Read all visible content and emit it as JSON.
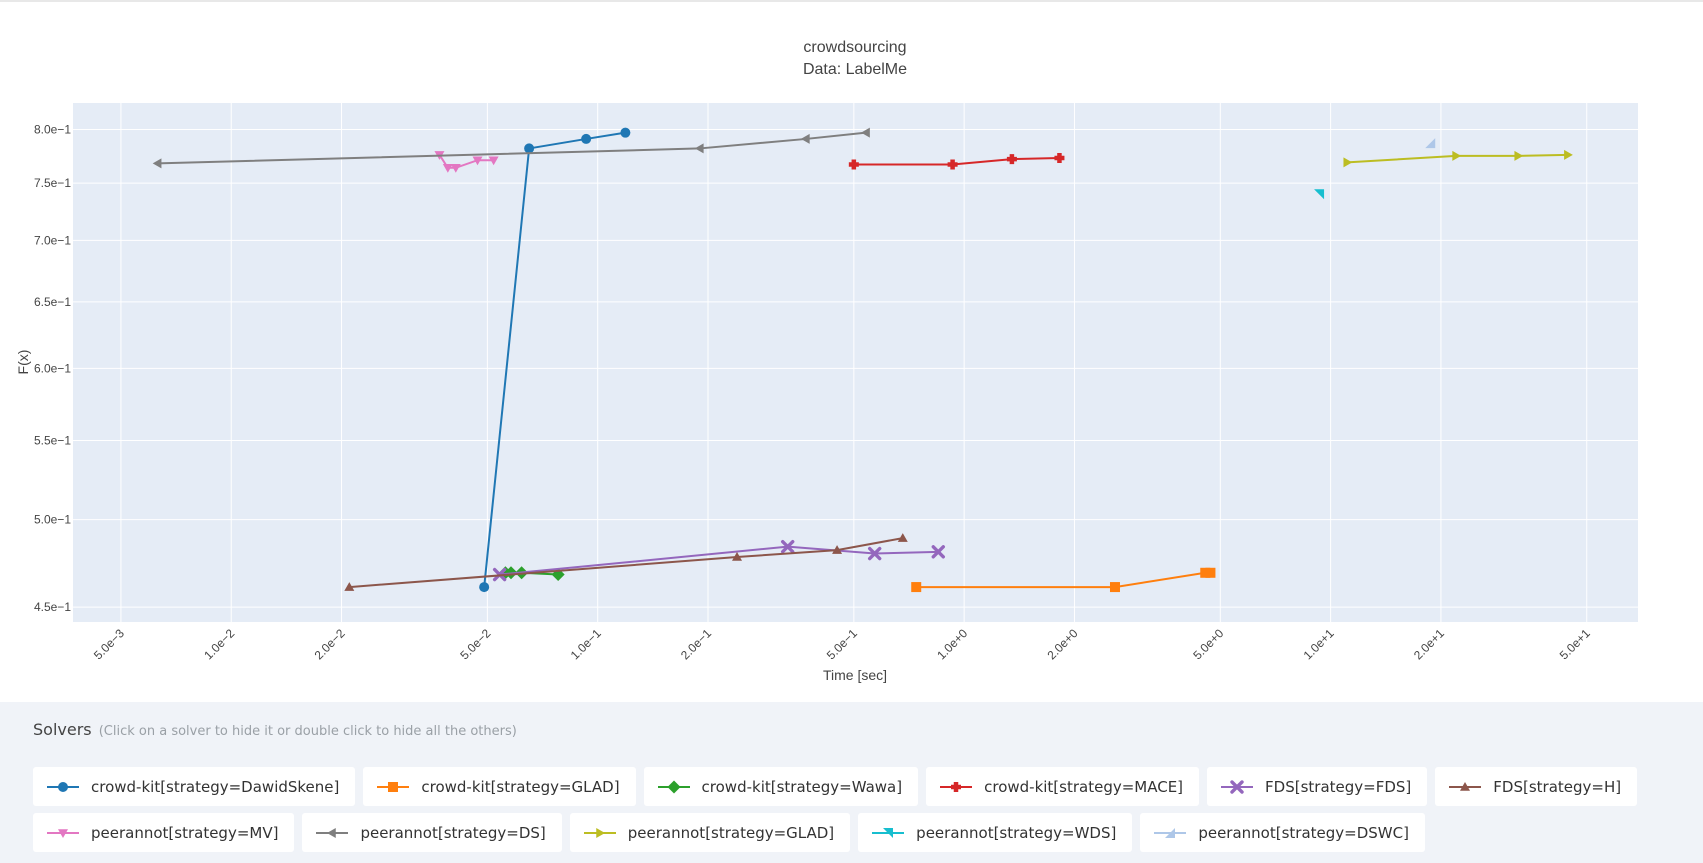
{
  "chart_data": {
    "type": "line",
    "title": "crowdsourcing",
    "subtitle": "Data: LabelMe",
    "xlabel": "Time [sec]",
    "ylabel": "F(x)",
    "x_scale": "log",
    "y_scale": "log",
    "xlim": [
      0.0037,
      69
    ],
    "ylim": [
      0.442,
      0.826
    ],
    "grid": true,
    "x_ticks": [
      {
        "value": 0.005,
        "label": "5.0e−3"
      },
      {
        "value": 0.01,
        "label": "1.0e−2"
      },
      {
        "value": 0.02,
        "label": "2.0e−2"
      },
      {
        "value": 0.05,
        "label": "5.0e−2"
      },
      {
        "value": 0.1,
        "label": "1.0e−1"
      },
      {
        "value": 0.2,
        "label": "2.0e−1"
      },
      {
        "value": 0.5,
        "label": "5.0e−1"
      },
      {
        "value": 1,
        "label": "1.0e+0"
      },
      {
        "value": 2,
        "label": "2.0e+0"
      },
      {
        "value": 5,
        "label": "5.0e+0"
      },
      {
        "value": 10,
        "label": "1.0e+1"
      },
      {
        "value": 20,
        "label": "2.0e+1"
      },
      {
        "value": 50,
        "label": "5.0e+1"
      }
    ],
    "y_ticks": [
      {
        "value": 0.45,
        "label": "4.5e−1"
      },
      {
        "value": 0.5,
        "label": "5.0e−1"
      },
      {
        "value": 0.55,
        "label": "5.5e−1"
      },
      {
        "value": 0.6,
        "label": "6.0e−1"
      },
      {
        "value": 0.65,
        "label": "6.5e−1"
      },
      {
        "value": 0.7,
        "label": "7.0e−1"
      },
      {
        "value": 0.75,
        "label": "7.5e−1"
      },
      {
        "value": 0.8,
        "label": "8.0e−1"
      }
    ],
    "series": [
      {
        "name": "crowd-kit[strategy=DawidSkene]",
        "color": "#1f77b4",
        "marker": "circle",
        "x": [
          0.049,
          0.065,
          0.093,
          0.119
        ],
        "y": [
          0.461,
          0.782,
          0.791,
          0.797
        ]
      },
      {
        "name": "crowd-kit[strategy=GLAD]",
        "color": "#ff7f0e",
        "marker": "square",
        "x": [
          0.74,
          2.58,
          4.55,
          4.7
        ],
        "y": [
          0.461,
          0.461,
          0.469,
          0.469
        ]
      },
      {
        "name": "crowd-kit[strategy=Wawa]",
        "color": "#2ca02c",
        "marker": "diamond",
        "x": [
          0.056,
          0.058,
          0.062,
          0.078
        ],
        "y": [
          0.469,
          0.469,
          0.469,
          0.468
        ]
      },
      {
        "name": "crowd-kit[strategy=MACE]",
        "color": "#d62728",
        "marker": "cross",
        "x": [
          0.5,
          0.93,
          1.35,
          1.82
        ],
        "y": [
          0.767,
          0.767,
          0.772,
          0.773
        ]
      },
      {
        "name": "FDS[strategy=FDS]",
        "color": "#9467bd",
        "marker": "x",
        "x": [
          0.054,
          0.33,
          0.57,
          0.85
        ],
        "y": [
          0.468,
          0.484,
          0.48,
          0.481
        ]
      },
      {
        "name": "FDS[strategy=H]",
        "color": "#8c564b",
        "marker": "triangle-up",
        "x": [
          0.021,
          0.24,
          0.45,
          0.68
        ],
        "y": [
          0.461,
          0.478,
          0.482,
          0.489
        ]
      },
      {
        "name": "peerannot[strategy=MV]",
        "color": "#e377c2",
        "marker": "triangle-down",
        "x": [
          0.037,
          0.039,
          0.041,
          0.047,
          0.052
        ],
        "y": [
          0.776,
          0.764,
          0.764,
          0.771,
          0.771
        ]
      },
      {
        "name": "peerannot[strategy=DS]",
        "color": "#7f7f7f",
        "marker": "triangle-left",
        "x": [
          0.0063,
          0.19,
          0.37,
          0.54
        ],
        "y": [
          0.768,
          0.782,
          0.791,
          0.797
        ]
      },
      {
        "name": "peerannot[strategy=GLAD]",
        "color": "#bcbd22",
        "marker": "triangle-right",
        "x": [
          11.1,
          22.0,
          32.5,
          44.4
        ],
        "y": [
          0.769,
          0.775,
          0.775,
          0.776
        ]
      },
      {
        "name": "peerannot[strategy=WDS]",
        "color": "#17becf",
        "marker": "triangle-ne",
        "x": [
          9.3
        ],
        "y": [
          0.74
        ]
      },
      {
        "name": "peerannot[strategy=DSWC]",
        "color": "#aec7e8",
        "marker": "triangle-sw",
        "x": [
          18.7
        ],
        "y": [
          0.787
        ]
      }
    ]
  },
  "legend": {
    "title": "Solvers",
    "hint": "(Click on a solver to hide it or double click to hide all the others)"
  }
}
